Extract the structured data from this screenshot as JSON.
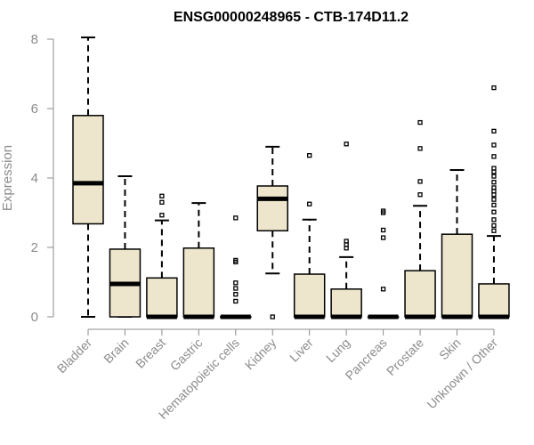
{
  "chart_data": {
    "type": "boxplot",
    "title": "ENSG00000248965 - CTB-174D11.2",
    "ylabel": "Expression",
    "xlabel": "",
    "ylim": [
      0,
      8
    ],
    "yticks": [
      0,
      2,
      4,
      6,
      8
    ],
    "box_color": "#ede6cc",
    "categories": [
      "Bladder",
      "Brain",
      "Breast",
      "Gastric",
      "Hematopoietic cells",
      "Kidney",
      "Liver",
      "Lung",
      "Pancreas",
      "Prostate",
      "Skin",
      "Unknown / Other"
    ],
    "boxes": [
      {
        "min": 0,
        "q1": 2.68,
        "median": 3.85,
        "q3": 5.8,
        "max": 8.05,
        "outliers": []
      },
      {
        "min": 0,
        "q1": 0,
        "median": 0.95,
        "q3": 1.95,
        "max": 4.05,
        "outliers": []
      },
      {
        "min": 0,
        "q1": 0,
        "median": 0,
        "q3": 1.12,
        "max": 2.78,
        "outliers": [
          2.93,
          3.3,
          3.48
        ]
      },
      {
        "min": 0,
        "q1": 0,
        "median": 0,
        "q3": 1.98,
        "max": 3.28,
        "outliers": []
      },
      {
        "min": 0,
        "q1": 0,
        "median": 0,
        "q3": 0,
        "max": 0,
        "outliers": [
          0.45,
          0.65,
          0.82,
          0.98,
          1.58,
          1.63,
          2.85
        ]
      },
      {
        "min": 1.25,
        "q1": 2.48,
        "median": 3.4,
        "q3": 3.77,
        "max": 4.9,
        "outliers": [
          0
        ]
      },
      {
        "min": 0,
        "q1": 0,
        "median": 0,
        "q3": 1.23,
        "max": 2.8,
        "outliers": [
          3.25,
          4.65
        ]
      },
      {
        "min": 0,
        "q1": 0,
        "median": 0,
        "q3": 0.8,
        "max": 1.72,
        "outliers": [
          1.98,
          2.08,
          2.18,
          4.98
        ]
      },
      {
        "min": 0,
        "q1": 0,
        "median": 0,
        "q3": 0,
        "max": 0,
        "outliers": [
          0.8,
          2.28,
          2.5,
          3.0,
          3.05
        ]
      },
      {
        "min": 0,
        "q1": 0,
        "median": 0,
        "q3": 1.33,
        "max": 3.2,
        "outliers": [
          3.52,
          3.9,
          4.85,
          5.6
        ]
      },
      {
        "min": 0,
        "q1": 0,
        "median": 0,
        "q3": 2.38,
        "max": 4.23,
        "outliers": []
      },
      {
        "min": 0,
        "q1": 0,
        "median": 0,
        "q3": 0.95,
        "max": 2.33,
        "outliers": [
          2.48,
          2.63,
          2.8,
          3.02,
          3.22,
          3.38,
          3.52,
          3.62,
          3.72,
          3.88,
          4.05,
          4.18,
          4.28,
          4.62,
          4.95,
          5.35,
          6.6
        ]
      }
    ]
  }
}
